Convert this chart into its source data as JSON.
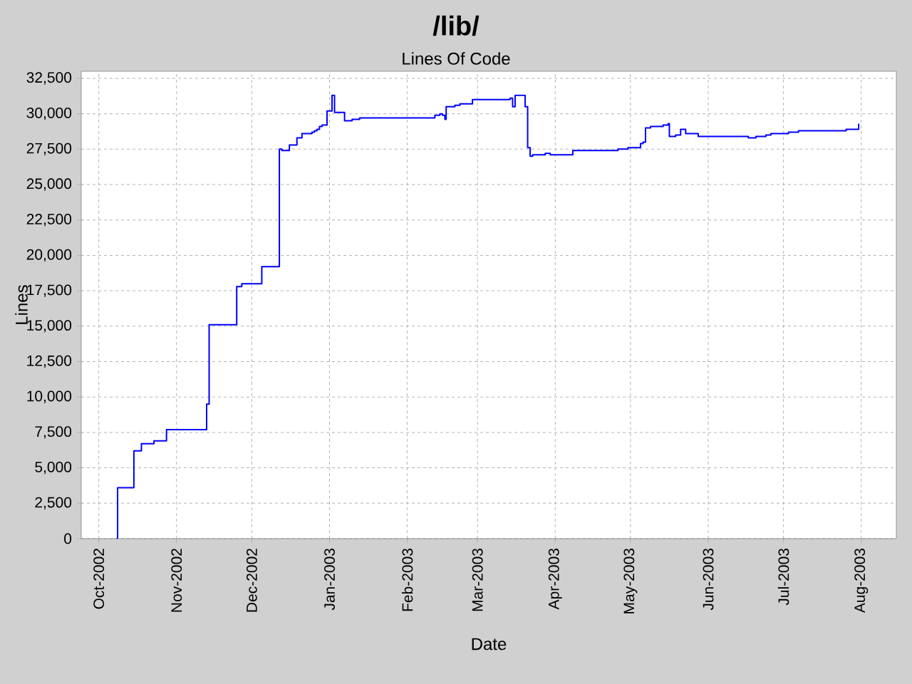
{
  "chart_data": {
    "type": "step",
    "title": "/lib/",
    "subtitle": "Lines Of Code",
    "xlabel": "Date",
    "ylabel": "Lines",
    "x": [
      "2002-10-08",
      "2002-10-08T12:00",
      "2002-10-15",
      "2002-10-18",
      "2002-10-23",
      "2002-10-28",
      "2002-11-13",
      "2002-11-14",
      "2002-11-25",
      "2002-11-27",
      "2002-12-05",
      "2002-12-12",
      "2002-12-13",
      "2002-12-16",
      "2002-12-19",
      "2002-12-21",
      "2002-12-25",
      "2002-12-26",
      "2002-12-27",
      "2002-12-28",
      "2002-12-29",
      "2002-12-31",
      "2003-01-02",
      "2003-01-03",
      "2003-01-07",
      "2003-01-10",
      "2003-01-13",
      "2003-02-12",
      "2003-02-14",
      "2003-02-15",
      "2003-02-16",
      "2003-02-16T12:00",
      "2003-02-20",
      "2003-02-22",
      "2003-02-27",
      "2003-03-14",
      "2003-03-15",
      "2003-03-16",
      "2003-03-20",
      "2003-03-21",
      "2003-03-22",
      "2003-03-23",
      "2003-03-28",
      "2003-03-30",
      "2003-04-08",
      "2003-04-26",
      "2003-04-30",
      "2003-05-05",
      "2003-05-06",
      "2003-05-07",
      "2003-05-09",
      "2003-05-14",
      "2003-05-16",
      "2003-05-16T12:00",
      "2003-05-19",
      "2003-05-21",
      "2003-05-23",
      "2003-05-28",
      "2003-06-17",
      "2003-06-20",
      "2003-06-24",
      "2003-06-26",
      "2003-07-03",
      "2003-07-07",
      "2003-07-26",
      "2003-07-31"
    ],
    "series": [
      {
        "color": "#0000ff",
        "values": [
          0,
          3600,
          6200,
          6700,
          6900,
          7700,
          9500,
          15100,
          17800,
          18000,
          19200,
          27500,
          27400,
          27800,
          28300,
          28600,
          28700,
          28800,
          28900,
          29100,
          29200,
          30200,
          31300,
          30100,
          29500,
          29600,
          29700,
          29900,
          30000,
          29900,
          29600,
          30500,
          30600,
          30700,
          31000,
          31100,
          30500,
          31300,
          30500,
          27600,
          27000,
          27100,
          27200,
          27100,
          27400,
          27500,
          27600,
          27900,
          28000,
          29000,
          29100,
          29200,
          29300,
          28400,
          28500,
          28900,
          28600,
          28400,
          28300,
          28400,
          28500,
          28600,
          28700,
          28800,
          28900,
          29300
        ]
      }
    ],
    "xlim": [
      "2002-09-24",
      "2003-08-15"
    ],
    "xticks": [
      {
        "value": "2002-10-01",
        "label": "Oct-2002"
      },
      {
        "value": "2002-11-01",
        "label": "Nov-2002"
      },
      {
        "value": "2002-12-01",
        "label": "Dec-2002"
      },
      {
        "value": "2003-01-01",
        "label": "Jan-2003"
      },
      {
        "value": "2003-02-01",
        "label": "Feb-2003"
      },
      {
        "value": "2003-03-01",
        "label": "Mar-2003"
      },
      {
        "value": "2003-04-01",
        "label": "Apr-2003"
      },
      {
        "value": "2003-05-01",
        "label": "May-2003"
      },
      {
        "value": "2003-06-01",
        "label": "Jun-2003"
      },
      {
        "value": "2003-07-01",
        "label": "Jul-2003"
      },
      {
        "value": "2003-08-01",
        "label": "Aug-2003"
      }
    ],
    "ylim": [
      0,
      33000
    ],
    "yticks": [
      0,
      {
        "value": 2500,
        "label": "2,500"
      },
      {
        "value": 5000,
        "label": "5,000"
      },
      {
        "value": 7500,
        "label": "7,500"
      },
      {
        "value": 10000,
        "label": "10,000"
      },
      {
        "value": 12500,
        "label": "12,500"
      },
      {
        "value": 15000,
        "label": "15,000"
      },
      {
        "value": 17500,
        "label": "17,500"
      },
      {
        "value": 20000,
        "label": "20,000"
      },
      {
        "value": 22500,
        "label": "22,500"
      },
      {
        "value": 25000,
        "label": "25,000"
      },
      {
        "value": 27500,
        "label": "27,500"
      },
      {
        "value": 30000,
        "label": "30,000"
      },
      {
        "value": 32500,
        "label": "32,500"
      }
    ],
    "grid": true
  }
}
